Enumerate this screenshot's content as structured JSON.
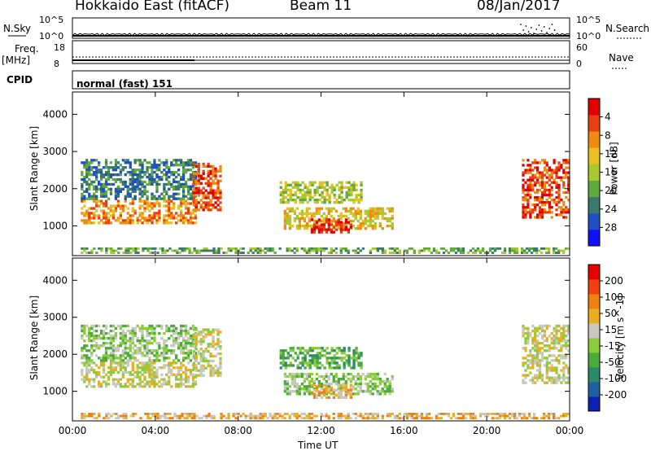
{
  "header": {
    "radar": "Hokkaido East (fitACF)",
    "beam": "Beam 11",
    "date": "08/Jan/2017"
  },
  "summary": {
    "nsky_label": "N.Sky",
    "nsearch_label": "N.Search",
    "count_ticks": [
      "10^5",
      "10^0"
    ],
    "freq_label": "Freq.",
    "freq_unit": "[MHz]",
    "freq_ticks": [
      "18",
      "8"
    ],
    "nave_label": "Nave",
    "nave_ticks": [
      "60",
      "0"
    ],
    "cpid_label": "CPID",
    "cpid_value": "normal (fast) 151"
  },
  "chart_data": [
    {
      "type": "heatmap",
      "panel": "power",
      "ylabel": "Slant Range [km]",
      "yticks": [
        "1000",
        "2000",
        "3000",
        "4000"
      ],
      "ylim": [
        200,
        4600
      ],
      "xlim": [
        0,
        24
      ],
      "colorbar_label": "Power [dB]",
      "colorbar_ticks": [
        "4",
        "8",
        "12",
        "16",
        "20",
        "24",
        "28"
      ],
      "colors": [
        "#1010ff",
        "#2050c0",
        "#3a7a6a",
        "#5faa3a",
        "#a8c830",
        "#e8c020",
        "#f08a10",
        "#e84010",
        "#e00000"
      ],
      "regions": [
        {
          "t0": 0.4,
          "t1": 6.0,
          "r0": 1050,
          "r1": 1700,
          "level": 6
        },
        {
          "t0": 0.4,
          "t1": 6.0,
          "r0": 1700,
          "r1": 2800,
          "level": 2
        },
        {
          "t0": 5.8,
          "t1": 7.2,
          "r0": 1400,
          "r1": 2700,
          "level": 7
        },
        {
          "t0": 10.2,
          "t1": 15.5,
          "r0": 900,
          "r1": 1500,
          "level": 5
        },
        {
          "t0": 10.0,
          "t1": 14.0,
          "r0": 1600,
          "r1": 2200,
          "level": 4
        },
        {
          "t0": 11.5,
          "t1": 13.5,
          "r0": 800,
          "r1": 1200,
          "level": 8
        },
        {
          "t0": 21.7,
          "t1": 24.0,
          "r0": 1200,
          "r1": 2800,
          "level": 7
        },
        {
          "t0": 0.4,
          "t1": 24.0,
          "r0": 250,
          "r1": 420,
          "level": 3
        }
      ]
    },
    {
      "type": "heatmap",
      "panel": "velocity",
      "ylabel": "Slant Range [km]",
      "yticks": [
        "1000",
        "2000",
        "3000",
        "4000"
      ],
      "ylim": [
        200,
        4600
      ],
      "xlim": [
        0,
        24
      ],
      "colorbar_label": "Velocity [m s^-1]",
      "colorbar_ticks": [
        "200",
        "100",
        "50",
        "15",
        "-15",
        "-50",
        "-100",
        "-200"
      ],
      "colors": [
        "#1020b0",
        "#2060a0",
        "#2a8a6a",
        "#4aaa3a",
        "#8ccc3a",
        "#c8c8c0",
        "#e8b020",
        "#f08010",
        "#f04010",
        "#e80000"
      ],
      "regions": [
        {
          "t0": 0.4,
          "t1": 6.0,
          "r0": 1100,
          "r1": 1800,
          "level": 5
        },
        {
          "t0": 0.4,
          "t1": 6.0,
          "r0": 1800,
          "r1": 2800,
          "level": 4
        },
        {
          "t0": 5.8,
          "t1": 7.2,
          "r0": 1400,
          "r1": 2700,
          "level": 5
        },
        {
          "t0": 10.2,
          "t1": 15.5,
          "r0": 900,
          "r1": 1500,
          "level": 4
        },
        {
          "t0": 10.0,
          "t1": 14.0,
          "r0": 1600,
          "r1": 2200,
          "level": 3
        },
        {
          "t0": 11.5,
          "t1": 13.5,
          "r0": 800,
          "r1": 1200,
          "level": 6
        },
        {
          "t0": 21.7,
          "t1": 24.0,
          "r0": 1200,
          "r1": 2800,
          "level": 5
        },
        {
          "t0": 0.4,
          "t1": 24.0,
          "r0": 250,
          "r1": 420,
          "level": 6
        }
      ]
    }
  ],
  "xaxis": {
    "ticks": [
      "00:00",
      "04:00",
      "08:00",
      "12:00",
      "16:00",
      "20:00",
      "00:00"
    ],
    "label": "Time UT"
  }
}
